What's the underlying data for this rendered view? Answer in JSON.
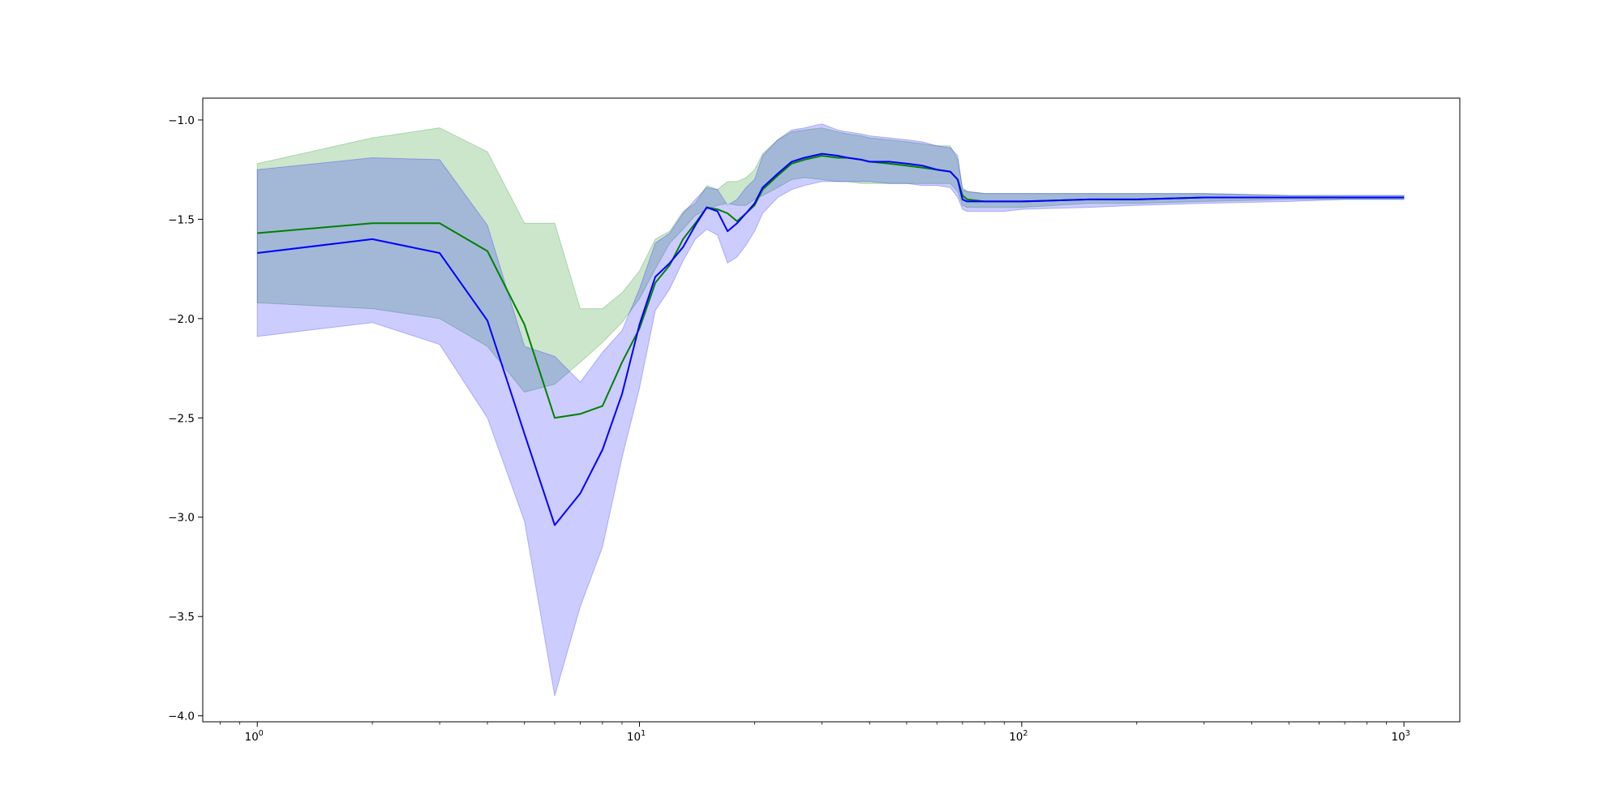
{
  "chart_data": {
    "type": "line",
    "title": "",
    "xlabel": "",
    "ylabel": "",
    "xscale": "log",
    "xlim": [
      0.72,
      1400
    ],
    "ylim": [
      -4.03,
      -0.89
    ],
    "grid": false,
    "legend": "none",
    "x_ticks": [
      {
        "value": 1,
        "base": "10",
        "exp": "0"
      },
      {
        "value": 10,
        "base": "10",
        "exp": "1"
      },
      {
        "value": 100,
        "base": "10",
        "exp": "2"
      },
      {
        "value": 1000,
        "base": "10",
        "exp": "3"
      }
    ],
    "y_ticks": [
      {
        "value": -1.0,
        "label": "−1.0"
      },
      {
        "value": -1.5,
        "label": "−1.5"
      },
      {
        "value": -2.0,
        "label": "−2.0"
      },
      {
        "value": -2.5,
        "label": "−2.5"
      },
      {
        "value": -3.0,
        "label": "−3.0"
      },
      {
        "value": -3.5,
        "label": "−3.5"
      },
      {
        "value": -4.0,
        "label": "−4.0"
      }
    ],
    "series": [
      {
        "color": "#008000",
        "band_color": "#008000",
        "band_opacity": 0.2,
        "x": [
          1,
          2,
          3,
          4,
          5,
          6,
          7,
          8,
          9,
          10,
          11,
          12,
          13,
          14,
          15,
          16,
          17,
          18,
          19,
          20,
          21,
          23,
          25,
          27,
          30,
          33,
          35,
          38,
          40,
          45,
          50,
          55,
          60,
          65,
          68,
          70,
          72,
          80,
          90,
          100,
          150,
          200,
          300,
          500,
          700,
          1000
        ],
        "y": [
          -1.57,
          -1.52,
          -1.52,
          -1.66,
          -2.03,
          -2.5,
          -2.48,
          -2.44,
          -2.22,
          -2.05,
          -1.82,
          -1.73,
          -1.6,
          -1.52,
          -1.44,
          -1.45,
          -1.47,
          -1.51,
          -1.47,
          -1.43,
          -1.35,
          -1.28,
          -1.22,
          -1.2,
          -1.18,
          -1.19,
          -1.19,
          -1.2,
          -1.21,
          -1.22,
          -1.23,
          -1.24,
          -1.25,
          -1.26,
          -1.3,
          -1.38,
          -1.4,
          -1.41,
          -1.41,
          -1.41,
          -1.4,
          -1.4,
          -1.39,
          -1.39,
          -1.39,
          -1.39
        ],
        "lower": [
          -1.92,
          -1.95,
          -2.0,
          -2.14,
          -2.37,
          -2.33,
          -2.22,
          -2.12,
          -2.02,
          -1.9,
          -1.75,
          -1.62,
          -1.55,
          -1.48,
          -1.45,
          -1.43,
          -1.42,
          -1.43,
          -1.43,
          -1.4,
          -1.38,
          -1.34,
          -1.3,
          -1.29,
          -1.3,
          -1.31,
          -1.31,
          -1.32,
          -1.32,
          -1.32,
          -1.32,
          -1.32,
          -1.32,
          -1.32,
          -1.36,
          -1.43,
          -1.44,
          -1.44,
          -1.44,
          -1.44,
          -1.42,
          -1.42,
          -1.41,
          -1.4,
          -1.4,
          -1.4
        ],
        "upper": [
          -1.22,
          -1.09,
          -1.04,
          -1.16,
          -1.52,
          -1.52,
          -1.95,
          -1.95,
          -1.87,
          -1.76,
          -1.6,
          -1.56,
          -1.46,
          -1.42,
          -1.33,
          -1.35,
          -1.31,
          -1.31,
          -1.29,
          -1.25,
          -1.17,
          -1.1,
          -1.06,
          -1.05,
          -1.04,
          -1.06,
          -1.07,
          -1.08,
          -1.09,
          -1.1,
          -1.11,
          -1.12,
          -1.13,
          -1.13,
          -1.2,
          -1.34,
          -1.36,
          -1.37,
          -1.37,
          -1.37,
          -1.37,
          -1.37,
          -1.37,
          -1.38,
          -1.38,
          -1.38
        ]
      },
      {
        "color": "#0000ff",
        "band_color": "#0000ff",
        "band_opacity": 0.2,
        "x": [
          1,
          2,
          3,
          4,
          5,
          6,
          7,
          8,
          9,
          10,
          11,
          12,
          13,
          14,
          15,
          16,
          17,
          18,
          19,
          20,
          21,
          23,
          25,
          27,
          30,
          33,
          35,
          38,
          40,
          45,
          50,
          55,
          60,
          65,
          68,
          70,
          72,
          80,
          90,
          100,
          150,
          200,
          300,
          500,
          700,
          1000
        ],
        "y": [
          -1.67,
          -1.6,
          -1.67,
          -2.01,
          -2.58,
          -3.04,
          -2.88,
          -2.66,
          -2.38,
          -2.03,
          -1.79,
          -1.72,
          -1.64,
          -1.53,
          -1.44,
          -1.46,
          -1.56,
          -1.52,
          -1.47,
          -1.42,
          -1.34,
          -1.27,
          -1.21,
          -1.19,
          -1.17,
          -1.18,
          -1.19,
          -1.2,
          -1.21,
          -1.21,
          -1.22,
          -1.23,
          -1.25,
          -1.26,
          -1.3,
          -1.4,
          -1.41,
          -1.41,
          -1.41,
          -1.41,
          -1.4,
          -1.4,
          -1.39,
          -1.39,
          -1.39,
          -1.39
        ],
        "lower": [
          -2.09,
          -2.02,
          -2.13,
          -2.5,
          -3.02,
          -3.9,
          -3.45,
          -3.15,
          -2.7,
          -2.35,
          -1.96,
          -1.85,
          -1.71,
          -1.6,
          -1.55,
          -1.58,
          -1.72,
          -1.69,
          -1.63,
          -1.56,
          -1.47,
          -1.39,
          -1.35,
          -1.33,
          -1.31,
          -1.31,
          -1.31,
          -1.31,
          -1.31,
          -1.32,
          -1.32,
          -1.33,
          -1.33,
          -1.34,
          -1.39,
          -1.45,
          -1.46,
          -1.46,
          -1.46,
          -1.45,
          -1.44,
          -1.43,
          -1.42,
          -1.41,
          -1.4,
          -1.4
        ],
        "upper": [
          -1.25,
          -1.19,
          -1.2,
          -1.53,
          -2.14,
          -2.19,
          -2.32,
          -2.17,
          -2.06,
          -1.85,
          -1.62,
          -1.57,
          -1.47,
          -1.4,
          -1.34,
          -1.35,
          -1.43,
          -1.4,
          -1.34,
          -1.3,
          -1.18,
          -1.1,
          -1.05,
          -1.04,
          -1.02,
          -1.05,
          -1.06,
          -1.07,
          -1.08,
          -1.09,
          -1.1,
          -1.11,
          -1.13,
          -1.14,
          -1.18,
          -1.35,
          -1.36,
          -1.37,
          -1.37,
          -1.37,
          -1.37,
          -1.37,
          -1.37,
          -1.38,
          -1.38,
          -1.38
        ]
      }
    ]
  }
}
